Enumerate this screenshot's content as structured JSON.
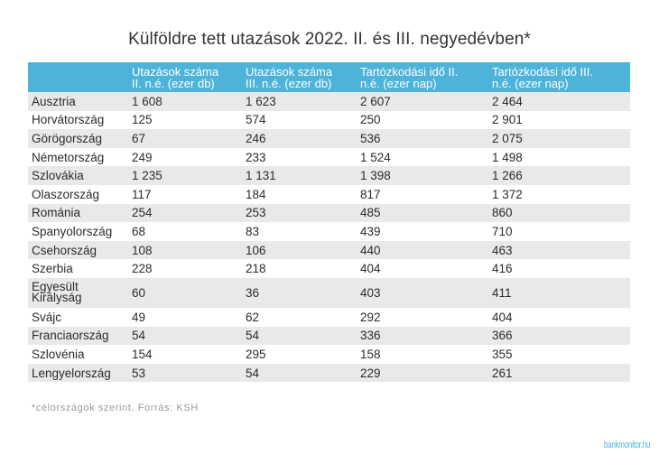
{
  "title": "Külföldre tett utazások 2022. II. és III. negyedévben*",
  "chart_data": {
    "type": "table",
    "columns": [
      {
        "lines": [
          "",
          ""
        ]
      },
      {
        "lines": [
          "Utazások száma",
          "II. n.é. (ezer db)"
        ]
      },
      {
        "lines": [
          "Utazások száma",
          "III. n.é. (ezer db)"
        ]
      },
      {
        "lines": [
          "Tartózkodási idő II.",
          "n.é. (ezer nap)"
        ]
      },
      {
        "lines": [
          "Tartózkodási idő III.",
          "n.é. (ezer nap)"
        ]
      }
    ],
    "rows": [
      {
        "country": "Ausztria",
        "values": [
          "1 608",
          "1 623",
          "2 607",
          "2 464"
        ]
      },
      {
        "country": "Horvátország",
        "values": [
          "125",
          "574",
          "250",
          "2 901"
        ]
      },
      {
        "country": "Görögország",
        "values": [
          "67",
          "246",
          "536",
          "2 075"
        ]
      },
      {
        "country": "Németország",
        "values": [
          "249",
          "233",
          "1 524",
          "1 498"
        ]
      },
      {
        "country": "Szlovákia",
        "values": [
          "1 235",
          "1 131",
          "1 398",
          "1 266"
        ]
      },
      {
        "country": "Olaszország",
        "values": [
          "117",
          "184",
          "817",
          "1 372"
        ]
      },
      {
        "country": "Románia",
        "values": [
          "254",
          "253",
          "485",
          "860"
        ]
      },
      {
        "country": "Spanyolország",
        "values": [
          "68",
          "83",
          "439",
          "710"
        ]
      },
      {
        "country": "Csehország",
        "values": [
          "108",
          "106",
          "440",
          "463"
        ]
      },
      {
        "country": "Szerbia",
        "values": [
          "228",
          "218",
          "404",
          "416"
        ]
      },
      {
        "country": "Egyesült Királyság",
        "values": [
          "60",
          "36",
          "403",
          "411"
        ]
      },
      {
        "country": "Svájc",
        "values": [
          "49",
          "62",
          "292",
          "404"
        ]
      },
      {
        "country": "Franciaország",
        "values": [
          "54",
          "54",
          "336",
          "366"
        ]
      },
      {
        "country": "Szlovénia",
        "values": [
          "154",
          "295",
          "158",
          "355"
        ]
      },
      {
        "country": "Lengyelország",
        "values": [
          "53",
          "54",
          "229",
          "261"
        ]
      }
    ]
  },
  "footnote": "*célországok szerint. Forrás: KSH",
  "logo": "bankmonitor.hu",
  "colors": {
    "header_bg": "#4eb3d8",
    "stripe": "#e9e9e9",
    "text": "#2b2b2b"
  }
}
